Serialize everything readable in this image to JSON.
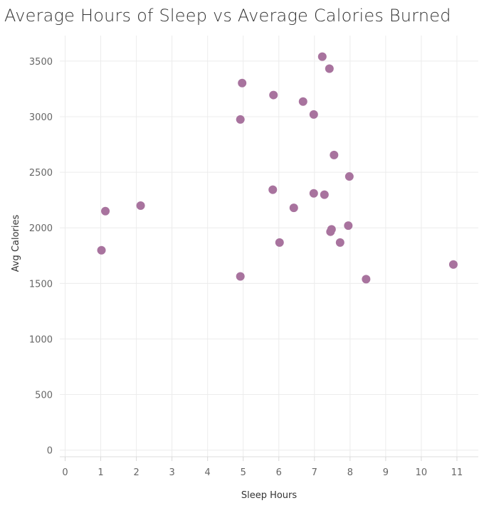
{
  "chart_data": {
    "type": "scatter",
    "title": "Average Hours of Sleep vs Average Calories Burned",
    "xlabel": "Sleep Hours",
    "ylabel": "Avg Calories",
    "xlim": [
      -0.15,
      11.6
    ],
    "ylim": [
      -60,
      3730
    ],
    "xticks": [
      0,
      1,
      2,
      3,
      4,
      5,
      6,
      7,
      8,
      9,
      10,
      11
    ],
    "yticks": [
      0,
      500,
      1000,
      1500,
      2000,
      2500,
      3000,
      3500
    ],
    "grid": true,
    "marker_color": "#A8739E",
    "points": [
      {
        "x": 1.02,
        "y": 1798
      },
      {
        "x": 1.13,
        "y": 2150
      },
      {
        "x": 2.12,
        "y": 2200
      },
      {
        "x": 4.92,
        "y": 1563
      },
      {
        "x": 4.92,
        "y": 2975
      },
      {
        "x": 4.97,
        "y": 3303
      },
      {
        "x": 5.83,
        "y": 2343
      },
      {
        "x": 5.85,
        "y": 3195
      },
      {
        "x": 6.02,
        "y": 1868
      },
      {
        "x": 6.42,
        "y": 2180
      },
      {
        "x": 6.68,
        "y": 3136
      },
      {
        "x": 6.98,
        "y": 2310
      },
      {
        "x": 6.98,
        "y": 3020
      },
      {
        "x": 7.22,
        "y": 3540
      },
      {
        "x": 7.28,
        "y": 2298
      },
      {
        "x": 7.42,
        "y": 3432
      },
      {
        "x": 7.45,
        "y": 1965
      },
      {
        "x": 7.48,
        "y": 1986
      },
      {
        "x": 7.55,
        "y": 2655
      },
      {
        "x": 7.72,
        "y": 1868
      },
      {
        "x": 7.95,
        "y": 2020
      },
      {
        "x": 7.98,
        "y": 2462
      },
      {
        "x": 8.45,
        "y": 1538
      },
      {
        "x": 10.9,
        "y": 1670
      }
    ]
  }
}
